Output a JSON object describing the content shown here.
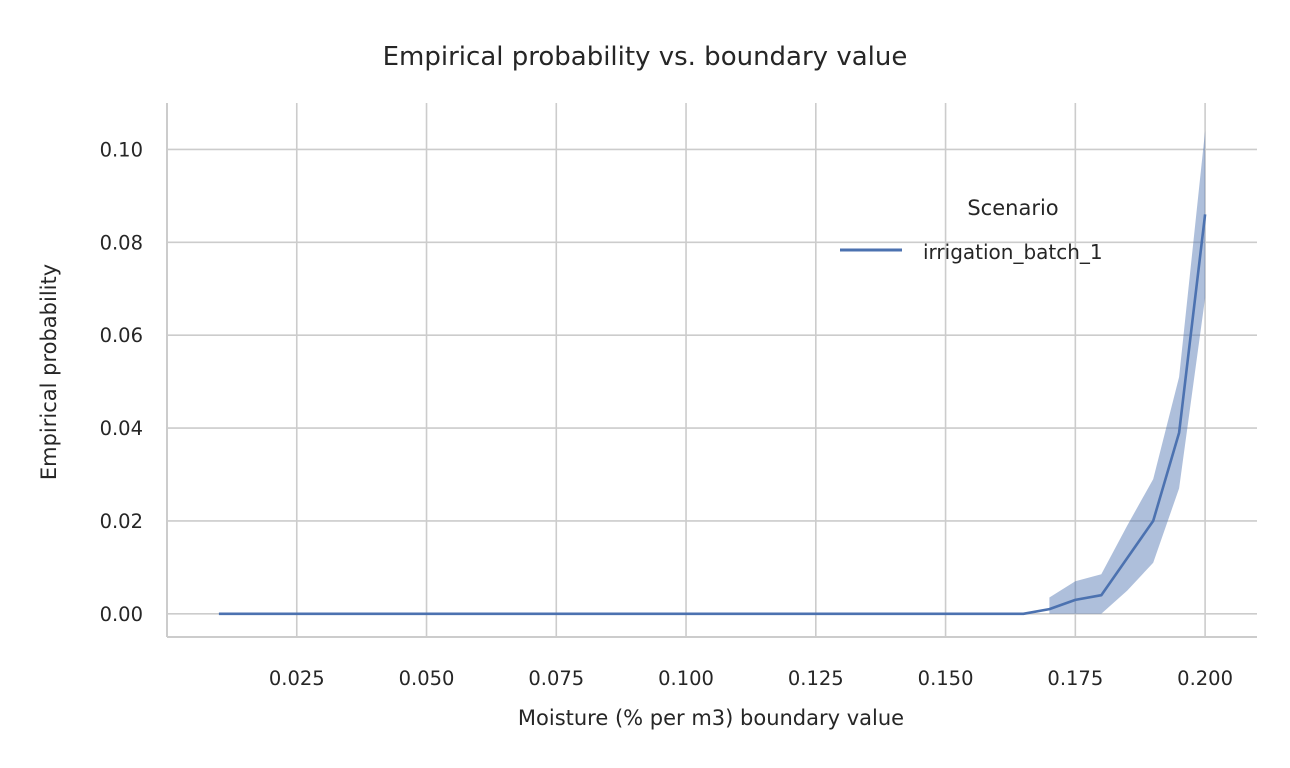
{
  "chart_data": {
    "type": "line",
    "title": "Empirical probability vs. boundary value",
    "xlabel": "Moisture (% per m3) boundary value",
    "ylabel": "Empirical probability",
    "xlim": [
      0.0,
      0.21
    ],
    "ylim": [
      -0.005,
      0.11
    ],
    "xticks": [
      0.025,
      0.05,
      0.075,
      0.1,
      0.125,
      0.15,
      0.175,
      0.2
    ],
    "xtick_labels": [
      "0.025",
      "0.050",
      "0.075",
      "0.100",
      "0.125",
      "0.150",
      "0.175",
      "0.200"
    ],
    "yticks": [
      0.0,
      0.02,
      0.04,
      0.06,
      0.08,
      0.1
    ],
    "ytick_labels": [
      "0.00",
      "0.02",
      "0.04",
      "0.06",
      "0.08",
      "0.10"
    ],
    "grid": true,
    "legend": {
      "title": "Scenario",
      "position": "top-right"
    },
    "series": [
      {
        "name": "irrigation_batch_1",
        "color": "#4c72b0",
        "x": [
          0.01,
          0.02,
          0.03,
          0.04,
          0.05,
          0.06,
          0.07,
          0.08,
          0.09,
          0.1,
          0.11,
          0.12,
          0.13,
          0.14,
          0.15,
          0.16,
          0.165,
          0.17,
          0.175,
          0.18,
          0.185,
          0.19,
          0.195,
          0.2
        ],
        "y": [
          0,
          0,
          0,
          0,
          0,
          0,
          0,
          0,
          0,
          0,
          0,
          0,
          0,
          0,
          0,
          0,
          0,
          0.001,
          0.003,
          0.004,
          0.012,
          0.02,
          0.039,
          0.086
        ],
        "ci_band": {
          "x": [
            0.17,
            0.175,
            0.18,
            0.185,
            0.19,
            0.195,
            0.2
          ],
          "lower": [
            0.0,
            0.0,
            0.0,
            0.005,
            0.011,
            0.027,
            0.068
          ],
          "upper": [
            0.0035,
            0.007,
            0.0085,
            0.019,
            0.029,
            0.051,
            0.104
          ]
        }
      }
    ]
  }
}
